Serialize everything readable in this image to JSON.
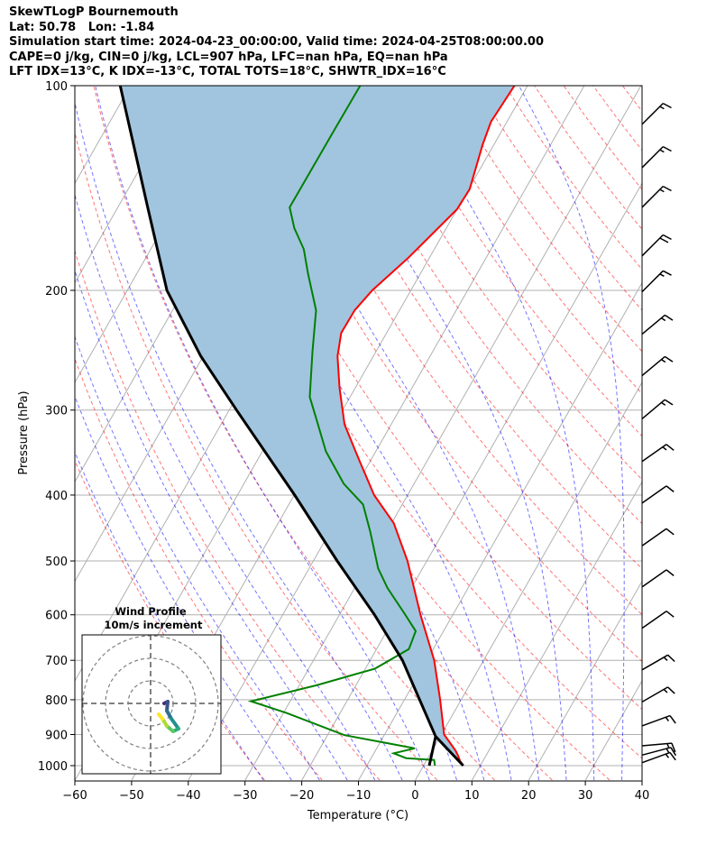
{
  "header": {
    "line1": "SkewTLogP Bournemouth",
    "line2": "Lat: 50.78   Lon: -1.84",
    "line3": "Simulation start time: 2024-04-23_00:00:00, Valid time: 2024-04-25T08:00:00.00",
    "line4": "CAPE=0 j/kg, CIN=0 j/kg, LCL=907 hPa, LFC=nan hPa, EQ=nan hPa",
    "line5": "LFT IDX=13°C, K IDX=-13°C, TOTAL TOTS=18°C, SHWTR_IDX=16°C"
  },
  "colors": {
    "temperature": "#ff0000",
    "dewpoint": "#008000",
    "parcel": "#000000",
    "cape_fill": "#a1c5de",
    "isotherm": "#b0b0b0",
    "dry_adiabat": "#ff0000",
    "moist_adiabat": "#0000ff",
    "grid": "#b0b0b0"
  },
  "chart_data": {
    "type": "line",
    "title": "SkewTLogP Bournemouth",
    "xlabel": "Temperature (°C)",
    "ylabel": "Pressure (hPa)",
    "xlim": [
      -60,
      40
    ],
    "ylim": [
      1050,
      100
    ],
    "xticks": [
      "−60",
      "−50",
      "−40",
      "−30",
      "−20",
      "−10",
      "0",
      "10",
      "20",
      "30",
      "40"
    ],
    "xtick_values": [
      -60,
      -50,
      -40,
      -30,
      -20,
      -10,
      0,
      10,
      20,
      30,
      40
    ],
    "yticks": [
      "100",
      "200",
      "300",
      "400",
      "500",
      "600",
      "700",
      "800",
      "900",
      "1000"
    ],
    "ytick_values": [
      100,
      200,
      300,
      400,
      500,
      600,
      700,
      800,
      900,
      1000
    ],
    "grid": true,
    "series": [
      {
        "name": "temperature",
        "p": [
          1000,
          985,
          967,
          950,
          900,
          800,
          700,
          600,
          500,
          440,
          400,
          355,
          315,
          278,
          250,
          231,
          214,
          200,
          179,
          152,
          142,
          122,
          113,
          100
        ],
        "T": [
          7.0,
          6.0,
          5.1,
          4.1,
          0.5,
          -3.7,
          -8.7,
          -15.7,
          -23.4,
          -29.6,
          -35.9,
          -42.1,
          -48.2,
          -52.8,
          -56.3,
          -58.0,
          -57.9,
          -56.8,
          -53.7,
          -50.0,
          -49.8,
          -52.0,
          -52.8,
          -52.3
        ]
      },
      {
        "name": "dewpoint",
        "p": [
          1000,
          981,
          975,
          959,
          943,
          929,
          902,
          837,
          804,
          762,
          720,
          674,
          634,
          596,
          548,
          513,
          453,
          413,
          385,
          345,
          306,
          287,
          246,
          214,
          189,
          174,
          162,
          151,
          115,
          100
        ],
        "T": [
          2.0,
          1.3,
          -3.8,
          -6.5,
          -3.3,
          -7.9,
          -17.0,
          -29.4,
          -36.9,
          -27.0,
          -18.3,
          -14.3,
          -14.9,
          -18.8,
          -24.2,
          -27.8,
          -32.9,
          -36.9,
          -42.4,
          -48.8,
          -54.2,
          -57.1,
          -61.2,
          -64.7,
          -69.8,
          -73.0,
          -76.8,
          -79.7,
          -79.6,
          -79.5
        ]
      },
      {
        "name": "parcel",
        "p": [
          1000,
          906,
          700,
          600,
          500,
          400,
          300,
          250,
          200,
          150,
          100
        ],
        "T": [
          7.0,
          -0.8,
          -14.3,
          -23.8,
          -35.8,
          -49.9,
          -68.7,
          -80.4,
          -93.0,
          -105.0,
          -121.8
        ]
      },
      {
        "name": "surface-to-lcl",
        "p": [
          1000,
          906
        ],
        "T": [
          1.0,
          -0.8
        ]
      }
    ],
    "wind_barbs": [
      {
        "p": 114,
        "dir": 315,
        "kt": 15
      },
      {
        "p": 132,
        "dir": 315,
        "kt": 15
      },
      {
        "p": 151,
        "dir": 315,
        "kt": 15
      },
      {
        "p": 178,
        "dir": 315,
        "kt": 20
      },
      {
        "p": 201,
        "dir": 315,
        "kt": 15
      },
      {
        "p": 232,
        "dir": 310,
        "kt": 15
      },
      {
        "p": 267,
        "dir": 310,
        "kt": 15
      },
      {
        "p": 309,
        "dir": 310,
        "kt": 15
      },
      {
        "p": 357,
        "dir": 305,
        "kt": 15
      },
      {
        "p": 411,
        "dir": 305,
        "kt": 10
      },
      {
        "p": 475,
        "dir": 305,
        "kt": 10
      },
      {
        "p": 546,
        "dir": 305,
        "kt": 10
      },
      {
        "p": 628,
        "dir": 305,
        "kt": 10
      },
      {
        "p": 723,
        "dir": 300,
        "kt": 15
      },
      {
        "p": 806,
        "dir": 300,
        "kt": 15
      },
      {
        "p": 874,
        "dir": 290,
        "kt": 15
      },
      {
        "p": 935,
        "dir": 275,
        "kt": 15
      },
      {
        "p": 965,
        "dir": 285,
        "kt": 15
      },
      {
        "p": 990,
        "dir": 290,
        "kt": 15
      }
    ],
    "hodograph": {
      "title": "Wind Profile",
      "subtitle": "10m/s increment",
      "rings_ms": [
        10,
        20,
        30
      ],
      "u": [
        6.0,
        7.6,
        7.2,
        9.2,
        12.4,
        10.0,
        7.2,
        5.2,
        3.6
      ],
      "v": [
        0.0,
        0.8,
        -3.2,
        -6.8,
        -11.2,
        -12.4,
        -10.0,
        -6.8,
        -4.8
      ]
    }
  }
}
